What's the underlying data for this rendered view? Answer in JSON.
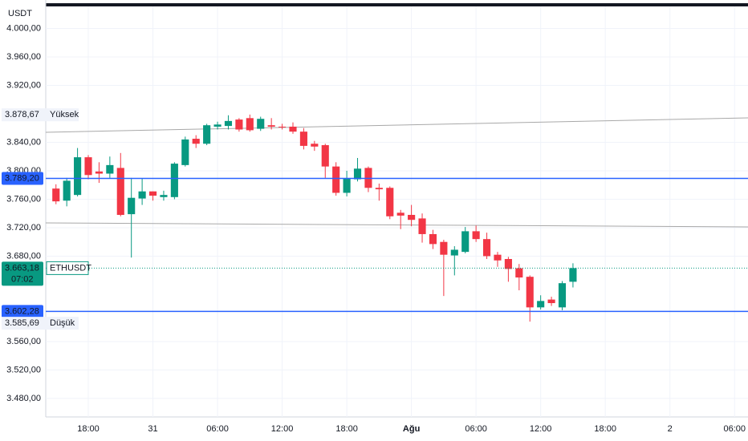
{
  "chart_data": {
    "type": "candlestick",
    "currency": "USDT",
    "x": [
      15,
      16,
      17,
      18,
      19,
      20,
      21,
      22,
      23,
      24,
      25,
      26,
      27,
      28,
      29,
      30,
      31,
      32,
      33,
      34,
      35,
      36,
      37,
      38,
      39,
      40,
      41,
      42,
      43,
      44,
      45,
      46,
      47,
      48,
      49,
      50,
      51,
      52,
      53,
      54,
      55,
      56,
      57,
      58,
      59,
      60,
      61,
      62,
      63
    ],
    "open": [
      3775,
      3758,
      3766,
      3819,
      3799,
      3796,
      3804,
      3739,
      3761,
      3771,
      3763,
      3763,
      3808,
      3845,
      3838,
      3862,
      3863,
      3872,
      3874,
      3859,
      3864,
      3862,
      3862,
      3855,
      3838,
      3836,
      3806,
      3769,
      3788,
      3804,
      3776,
      3776,
      3741,
      3738,
      3733,
      3711,
      3700,
      3681,
      3686,
      3715,
      3704,
      3682,
      3676,
      3663,
      3651,
      3608,
      3619,
      3608,
      3644
    ],
    "high": [
      3781,
      3790,
      3832,
      3822,
      3812,
      3820,
      3825,
      3790,
      3789,
      3771,
      3772,
      3812,
      3848,
      3850,
      3866,
      3869,
      3878,
      3874,
      3879,
      3876,
      3874,
      3866,
      3868,
      3860,
      3842,
      3838,
      3812,
      3800,
      3818,
      3806,
      3782,
      3778,
      3745,
      3752,
      3740,
      3717,
      3703,
      3694,
      3721,
      3723,
      3713,
      3686,
      3679,
      3669,
      3653,
      3625,
      3623,
      3645,
      3670
    ],
    "low": [
      3753,
      3750,
      3764,
      3788,
      3783,
      3790,
      3736,
      3678,
      3752,
      3758,
      3758,
      3760,
      3806,
      3832,
      3836,
      3858,
      3858,
      3855,
      3855,
      3856,
      3858,
      3858,
      3852,
      3830,
      3828,
      3790,
      3765,
      3764,
      3785,
      3770,
      3758,
      3732,
      3718,
      3722,
      3699,
      3690,
      3624,
      3653,
      3684,
      3700,
      3676,
      3665,
      3644,
      3632,
      3588,
      3605,
      3610,
      3604,
      3636
    ],
    "close": [
      3757,
      3786,
      3819,
      3794,
      3796,
      3808,
      3738,
      3762,
      3771,
      3765,
      3766,
      3810,
      3844,
      3838,
      3864,
      3865,
      3870,
      3858,
      3857,
      3873,
      3862,
      3861,
      3855,
      3835,
      3834,
      3806,
      3769,
      3789,
      3803,
      3776,
      3774,
      3736,
      3737,
      3731,
      3711,
      3697,
      3682,
      3689,
      3715,
      3704,
      3680,
      3674,
      3662,
      3650,
      3608,
      3617,
      3614,
      3642,
      3663.18
    ],
    "up_color": "#089981",
    "down_color": "#f23645",
    "xlim": [
      14.05,
      79.25
    ],
    "xticks": [
      {
        "value": 18,
        "label": "18:00"
      },
      {
        "value": 24,
        "label": "31"
      },
      {
        "value": 30,
        "label": "06:00"
      },
      {
        "value": 36,
        "label": "12:00"
      },
      {
        "value": 42,
        "label": "18:00"
      },
      {
        "value": 48,
        "label": "Ağu",
        "bold": true
      },
      {
        "value": 54,
        "label": "06:00"
      },
      {
        "value": 60,
        "label": "12:00"
      },
      {
        "value": 66,
        "label": "18:00"
      },
      {
        "value": 72,
        "label": "2"
      },
      {
        "value": 78,
        "label": "06:00"
      }
    ],
    "ylim": [
      3454,
      4031
    ],
    "yticks": [
      {
        "value": 4000,
        "label": "4.000,00"
      },
      {
        "value": 3960,
        "label": "3.960,00"
      },
      {
        "value": 3920,
        "label": "3.920,00"
      },
      {
        "value": 3840,
        "label": "3.840,00"
      },
      {
        "value": 3800,
        "label": "3.800,00"
      },
      {
        "value": 3760,
        "label": "3.760,00"
      },
      {
        "value": 3720,
        "label": "3.720,00"
      },
      {
        "value": 3680,
        "label": "3.680,00"
      },
      {
        "value": 3560,
        "label": "3.560,00"
      },
      {
        "value": 3520,
        "label": "3.520,00"
      },
      {
        "value": 3480,
        "label": "3.480,00"
      }
    ],
    "grid": true,
    "levels": [
      {
        "value": 3789.2,
        "label": "3.789,20",
        "color": "#2962ff"
      },
      {
        "value": 3602.28,
        "label": "3.602,28",
        "color": "#2962ff"
      }
    ],
    "last": {
      "value": 3663.18,
      "label": "3.663,18",
      "symbol": "ETHUSDT",
      "countdown": "07:02",
      "color": "#089981"
    },
    "high_mark": {
      "value": 3878.67,
      "label": "3.878,67",
      "text": "Yüksek"
    },
    "low_mark": {
      "value": 3585.69,
      "label": "3.585,69",
      "text": "Düşük"
    }
  }
}
